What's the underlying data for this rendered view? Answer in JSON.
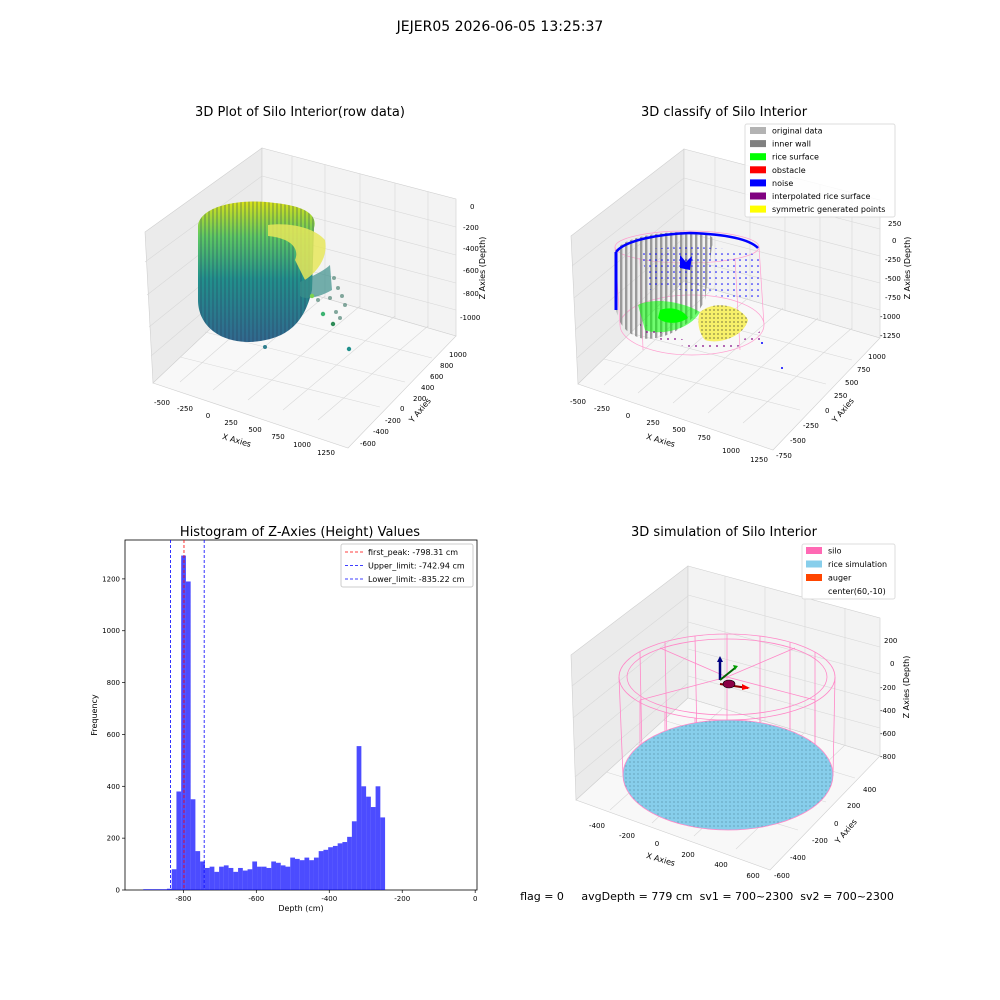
{
  "suptitle": "JEJER05 2026-06-05 13:25:37",
  "status_text": "flag = 0     avgDepth = 779 cm  sv1 = 700~2300  sv2 = 700~2300",
  "chart_data": [
    {
      "type": "scatter",
      "title": "3D Plot of Silo Interior(row data)",
      "xlabel": "X Axies",
      "ylabel": "Y Axies",
      "zlabel": "Z Axies (Depth)",
      "x_ticks": [
        "-500",
        "-250",
        "0",
        "250",
        "500",
        "750",
        "1000",
        "1250"
      ],
      "y_ticks": [
        "-600",
        "-400",
        "-200",
        "0",
        "200",
        "400",
        "600",
        "800",
        "1000"
      ],
      "z_ticks": [
        "0",
        "-200",
        "-400",
        "-600",
        "-800",
        "-1000"
      ],
      "colormap": "viridis"
    },
    {
      "type": "scatter",
      "title": "3D classify of Silo Interior",
      "xlabel": "X Axies",
      "ylabel": "Y Axies",
      "zlabel": "Z Axies (Depth)",
      "x_ticks": [
        "-500",
        "-250",
        "0",
        "250",
        "500",
        "750",
        "1000",
        "1250"
      ],
      "y_ticks": [
        "-750",
        "-500",
        "-250",
        "0",
        "250",
        "500",
        "750",
        "1000"
      ],
      "z_ticks": [
        "250",
        "0",
        "-250",
        "-500",
        "-750",
        "-1000",
        "-1250"
      ],
      "legend": [
        {
          "label": "original data",
          "color": "#b3b3b3"
        },
        {
          "label": "inner wall",
          "color": "#808080"
        },
        {
          "label": "rice surface",
          "color": "#00ff00"
        },
        {
          "label": "obstacle",
          "color": "#ff0000"
        },
        {
          "label": "noise",
          "color": "#0000ff"
        },
        {
          "label": "interpolated rice surface",
          "color": "#800080"
        },
        {
          "label": "symmetric generated points",
          "color": "#ffff00"
        }
      ],
      "legend_loc": "upper right"
    },
    {
      "type": "bar",
      "title": "Histogram of Z-Axies (Height) Values",
      "xlabel": "Depth (cm)",
      "ylabel": "Frequency",
      "xlim": [
        -960,
        5
      ],
      "ylim": [
        0,
        1350
      ],
      "bin_start": -910,
      "bin_width": 13,
      "values": [
        3,
        3,
        3,
        3,
        3,
        5,
        80,
        380,
        1290,
        1190,
        350,
        150,
        110,
        85,
        90,
        70,
        90,
        95,
        85,
        70,
        85,
        75,
        80,
        110,
        90,
        90,
        85,
        110,
        105,
        95,
        90,
        125,
        120,
        115,
        125,
        115,
        125,
        150,
        155,
        165,
        170,
        180,
        185,
        205,
        265,
        555,
        400,
        360,
        320,
        400,
        280
      ],
      "bar_color": "#0000ff",
      "x_ticks": [
        "-800",
        "-600",
        "-400",
        "-200",
        "0"
      ],
      "y_ticks": [
        "0",
        "200",
        "400",
        "600",
        "800",
        "1000",
        "1200"
      ],
      "lines": [
        {
          "label": "first_peak: -798.31 cm",
          "x": -798.31,
          "color": "#ff0000"
        },
        {
          "label": "Upper_limit: -742.94 cm",
          "x": -742.94,
          "color": "#0000ff"
        },
        {
          "label": "Lower_limit: -835.22 cm",
          "x": -835.22,
          "color": "#0000ff"
        }
      ],
      "legend_loc": "upper right"
    },
    {
      "type": "scatter",
      "title": "3D simulation of Silo Interior",
      "xlabel": "X Axies",
      "ylabel": "Y Axies",
      "zlabel": "Z Axies (Depth)",
      "x_ticks": [
        "-400",
        "-200",
        "0",
        "200",
        "400",
        "600"
      ],
      "y_ticks": [
        "-600",
        "-400",
        "-200",
        "0",
        "200",
        "400"
      ],
      "z_ticks": [
        "200",
        "0",
        "-200",
        "-400",
        "-600",
        "-800"
      ],
      "legend": [
        {
          "label": "silo",
          "color": "#ff69b4"
        },
        {
          "label": "rice simulation",
          "color": "#87ceeb"
        },
        {
          "label": "auger",
          "color": "#ff4500"
        },
        {
          "label": "center(60,-10)",
          "color": ""
        }
      ],
      "legend_loc": "upper right"
    }
  ]
}
